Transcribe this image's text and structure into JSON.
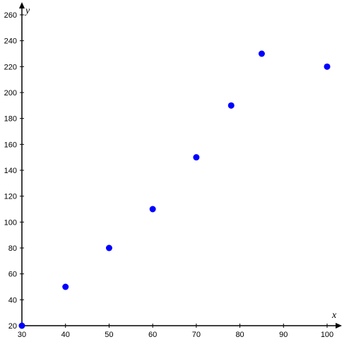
{
  "chart_data": {
    "type": "scatter",
    "title": "",
    "xlabel": "x",
    "ylabel": "y",
    "xlim": [
      30,
      100
    ],
    "ylim": [
      20,
      260
    ],
    "x_ticks": [
      30,
      40,
      50,
      60,
      70,
      80,
      90,
      100
    ],
    "y_ticks": [
      20,
      40,
      60,
      80,
      100,
      120,
      140,
      160,
      180,
      200,
      220,
      240,
      260
    ],
    "x_tick_labels": [
      "30",
      "40",
      "50",
      "60",
      "70",
      "80",
      "90",
      "100"
    ],
    "y_tick_labels": [
      "20",
      "40",
      "60",
      "80",
      "100",
      "120",
      "140",
      "160",
      "180",
      "200",
      "220",
      "240",
      "260"
    ],
    "grid": false,
    "points": [
      {
        "x": 30,
        "y": 20
      },
      {
        "x": 40,
        "y": 50
      },
      {
        "x": 50,
        "y": 80
      },
      {
        "x": 60,
        "y": 110
      },
      {
        "x": 70,
        "y": 150
      },
      {
        "x": 78,
        "y": 190
      },
      {
        "x": 85,
        "y": 230
      },
      {
        "x": 100,
        "y": 220
      }
    ],
    "marker_color": "#0000ff"
  }
}
